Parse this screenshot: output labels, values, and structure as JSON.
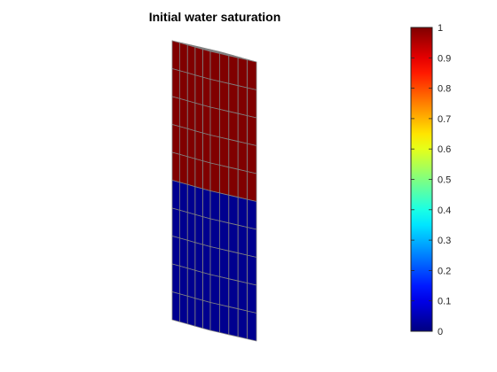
{
  "chart_data": {
    "type": "heatmap",
    "title": "Initial water saturation",
    "grid": {
      "nx": 5,
      "ny": 5,
      "nz": 10,
      "layers_top_to_bottom": [
        1,
        1,
        1,
        1,
        1,
        0,
        0,
        0,
        0,
        0
      ]
    },
    "colorbar": {
      "min": 0,
      "max": 1,
      "ticks": [
        0,
        0.1,
        0.2,
        0.3,
        0.4,
        0.5,
        0.6,
        0.7,
        0.8,
        0.9,
        1
      ],
      "tick_labels": [
        "0",
        "0.1",
        "0.2",
        "0.3",
        "0.4",
        "0.5",
        "0.6",
        "0.7",
        "0.8",
        "0.9",
        "1"
      ],
      "colormap": "jet"
    },
    "colors": {
      "water_full": "#800000",
      "water_none": "#00008f",
      "grid_lines": "#808080"
    }
  }
}
